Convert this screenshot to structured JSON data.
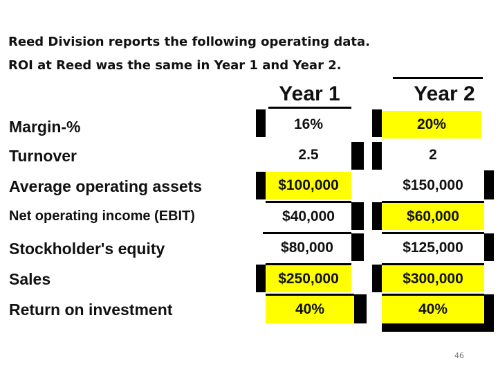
{
  "intro": {
    "line1": "Reed Division reports the following operating data.",
    "line2": "ROI at Reed was the same in Year 1 and Year 2."
  },
  "columns": [
    {
      "header": "Year 1"
    },
    {
      "header": "Year 2"
    }
  ],
  "rows": [
    {
      "label": "Margin-%",
      "year1": "16%",
      "year2": "20%"
    },
    {
      "label": "Turnover",
      "year1": "2.5",
      "year2": "2"
    },
    {
      "label": "Average operating assets",
      "year1": "$100,000",
      "year2": "$150,000"
    },
    {
      "label": "Net operating income (EBIT)",
      "year1": "$40,000",
      "year2": "$60,000"
    },
    {
      "label": "Stockholder's equity",
      "year1": "$80,000",
      "year2": "$125,000"
    },
    {
      "label": "Sales",
      "year1": "$250,000",
      "year2": "$300,000"
    },
    {
      "label": "Return on investment",
      "year1": "40%",
      "year2": "40%"
    }
  ],
  "colors": {
    "highlight": "#ffff00",
    "plain": "#ffffff"
  },
  "page_number": "46"
}
